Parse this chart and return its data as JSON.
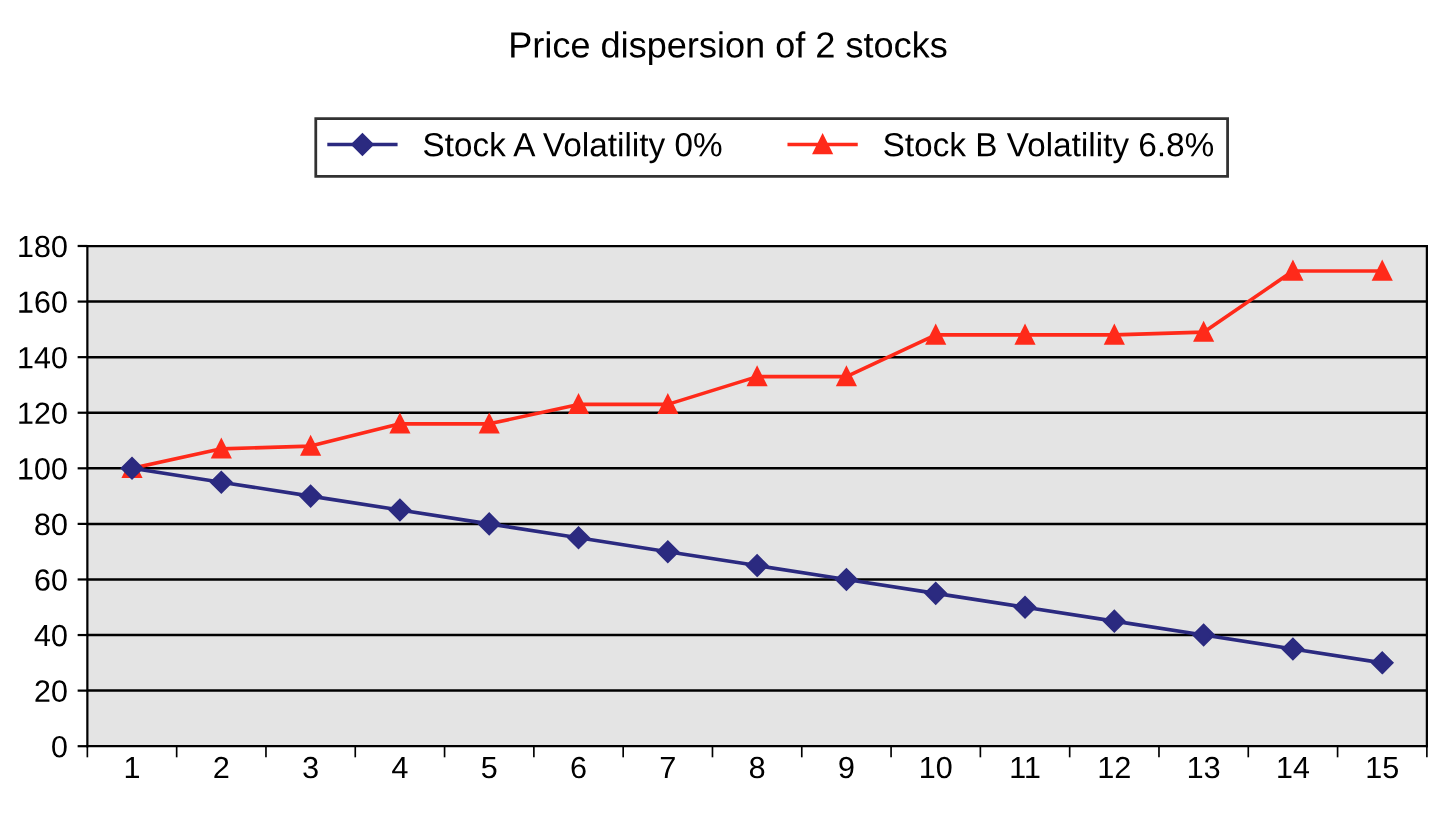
{
  "chart_data": {
    "type": "line",
    "title": "Price dispersion of 2 stocks",
    "categories": [
      "1",
      "2",
      "3",
      "4",
      "5",
      "6",
      "7",
      "8",
      "9",
      "10",
      "11",
      "12",
      "13",
      "14",
      "15"
    ],
    "series": [
      {
        "name": "Stock A Volatility 0%",
        "color": "#2b2a80",
        "marker": "diamond",
        "values": [
          100,
          95,
          90,
          85,
          80,
          75,
          70,
          65,
          60,
          55,
          50,
          45,
          40,
          35,
          30
        ]
      },
      {
        "name": "Stock B Volatility 6.8%",
        "color": "#ff2a1a",
        "marker": "triangle",
        "values": [
          100,
          107,
          108,
          116,
          116,
          123,
          123,
          133,
          133,
          148,
          148,
          148,
          149,
          171,
          171
        ]
      }
    ],
    "ylim": [
      0,
      180
    ],
    "yticks": [
      0,
      20,
      40,
      60,
      80,
      100,
      120,
      140,
      160,
      180
    ],
    "grid": "y",
    "legend": "top"
  }
}
